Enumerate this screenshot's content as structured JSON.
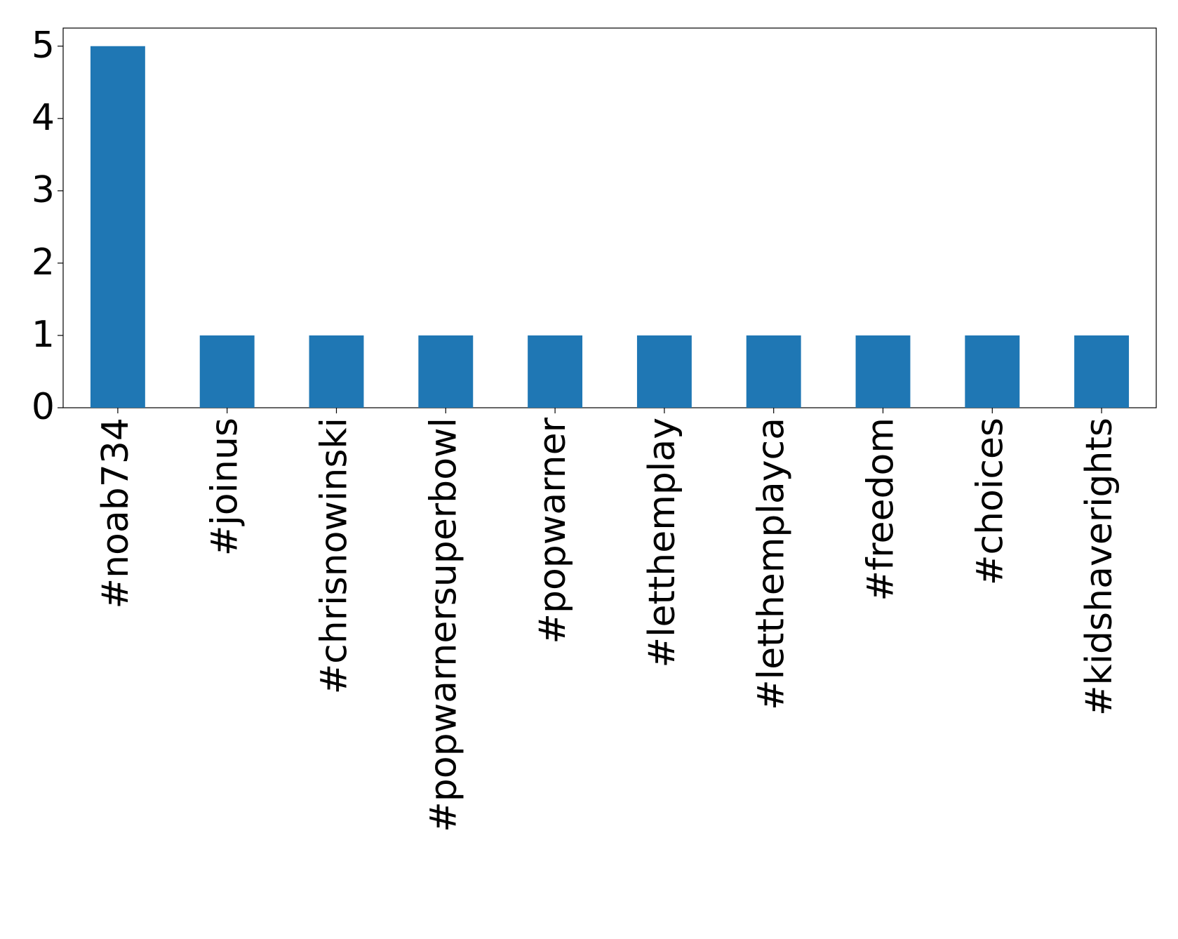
{
  "chart_data": {
    "type": "bar",
    "categories": [
      "#noab734",
      "#joinus",
      "#chrisnowinski",
      "#popwarnersuperbowl",
      "#popwarner",
      "#letthemplay",
      "#letthemplayca",
      "#freedom",
      "#choices",
      "#kidshaverights"
    ],
    "values": [
      5,
      1,
      1,
      1,
      1,
      1,
      1,
      1,
      1,
      1
    ],
    "color": "#1f77b4",
    "ylim": [
      0,
      5.25
    ],
    "yticks": [
      0,
      1,
      2,
      3,
      4,
      5
    ],
    "grid": false
  }
}
